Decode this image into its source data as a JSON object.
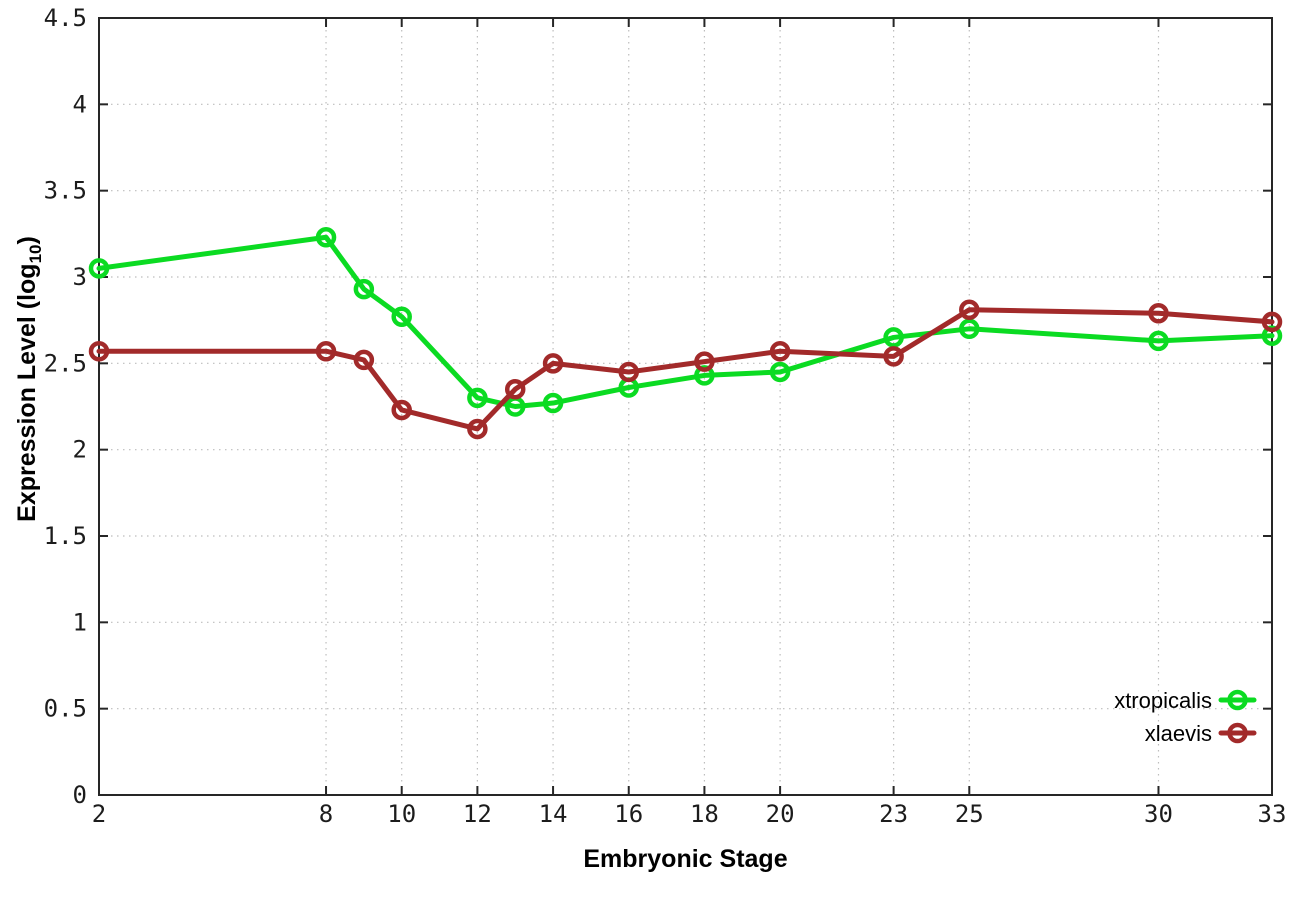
{
  "chart_data": {
    "type": "line",
    "title": "",
    "xlabel": "Embryonic Stage",
    "ylabel": "Expression Level (log10)",
    "ylabel_parts": {
      "prefix": "Expression Level (log",
      "sub": "10",
      "suffix": ")"
    },
    "x": [
      2,
      8,
      9,
      10,
      12,
      13,
      14,
      16,
      18,
      20,
      23,
      25,
      30,
      33
    ],
    "series": [
      {
        "name": "xtropicalis",
        "color": "#0bdb22",
        "values": [
          3.05,
          3.23,
          2.93,
          2.77,
          2.3,
          2.25,
          2.27,
          2.36,
          2.43,
          2.45,
          2.65,
          2.7,
          2.63,
          2.66
        ]
      },
      {
        "name": "xlaevis",
        "color": "#a22a2a",
        "values": [
          2.57,
          2.57,
          2.52,
          2.23,
          2.12,
          2.35,
          2.5,
          2.45,
          2.51,
          2.57,
          2.54,
          2.81,
          2.79,
          2.74
        ]
      }
    ],
    "xticks": [
      2,
      8,
      10,
      12,
      14,
      16,
      18,
      20,
      23,
      25,
      30,
      33
    ],
    "yticks": [
      0,
      0.5,
      1,
      1.5,
      2,
      2.5,
      3,
      3.5,
      4,
      4.5
    ],
    "xlim": [
      2,
      33
    ],
    "ylim": [
      0,
      4.5
    ],
    "grid": true,
    "legend_position": "bottom-right",
    "colors": {
      "grid": "#bdbdbd",
      "axis": "#262626",
      "tick_label": "#1c1c1c",
      "background": "#ffffff"
    }
  }
}
